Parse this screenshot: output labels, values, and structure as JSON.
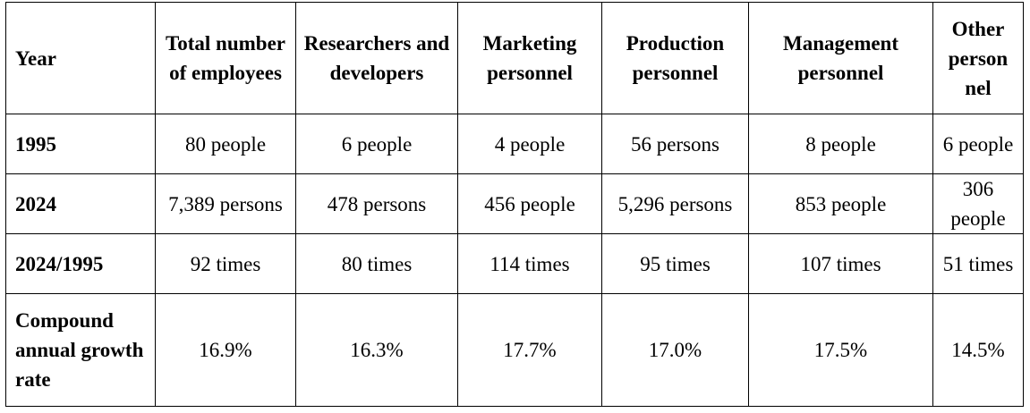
{
  "table": {
    "headers": [
      "Year",
      "Total number of employees",
      "Researchers and developers",
      "Marketing personnel",
      "Production personnel",
      "Management personnel",
      "Other person nel"
    ],
    "rows": [
      {
        "label": "1995",
        "cells": [
          "80 people",
          "6 people",
          "4 people",
          "56 persons",
          "8 people",
          "6 people"
        ]
      },
      {
        "label": "2024",
        "cells": [
          "7,389 persons",
          "478 persons",
          "456 people",
          "5,296 persons",
          "853 people",
          "306 people"
        ]
      },
      {
        "label": "2024/1995",
        "cells": [
          "92 times",
          "80 times",
          "114 times",
          "95 times",
          "107 times",
          "51 times"
        ]
      },
      {
        "label": "Compound annual growth rate",
        "cells": [
          "16.9%",
          "16.3%",
          "17.7%",
          "17.0%",
          "17.5%",
          "14.5%"
        ]
      }
    ]
  }
}
